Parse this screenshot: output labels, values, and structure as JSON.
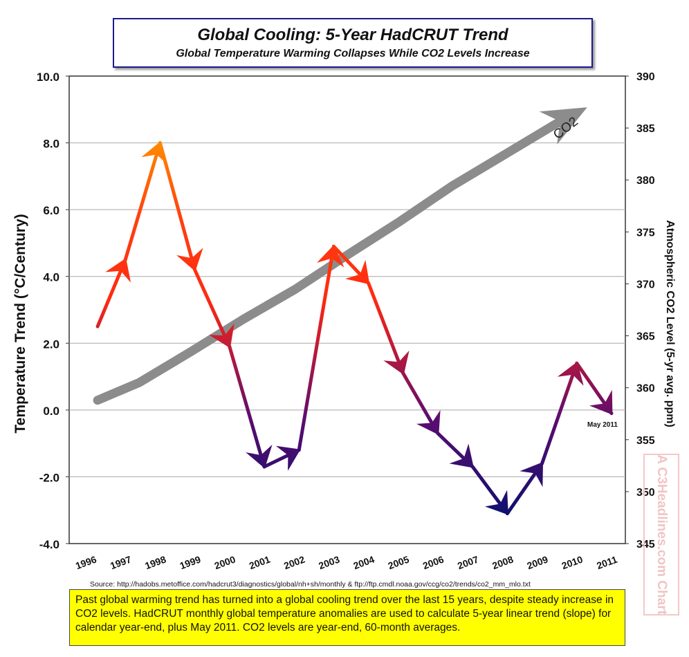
{
  "title": "Global Cooling: 5-Year HadCRUT Trend",
  "subtitle": "Global Temperature Warming Collapses While CO2 Levels Increase",
  "source": "Source: http://hadobs.metoffice.com/hadcrut3/diagnostics/global/nh+sh/monthly  &  ftp://ftp.cmdl.noaa.gov/ccg/co2/trends/co2_mm_mlo.txt",
  "note": "Past global warming trend has turned into a global cooling trend over the last 15 years, despite steady increase in CO2 levels. HadCRUT monthly global temperature anomalies are used to calculate 5-year linear trend (slope) for calendar year-end, plus May 2011. CO2 levels are year-end, 60-month averages.",
  "watermark": "A C3Headlines.com Chart",
  "colors": {
    "title_border": "#1a1a8c",
    "note_bg": "#ffff00",
    "co2_arrow": "#8c8c8c",
    "temp_warm": "#ff2a10",
    "temp_cool": "#1a0f80"
  },
  "chart_data": {
    "type": "line",
    "categories": [
      "1996",
      "1997",
      "1998",
      "1999",
      "2000",
      "2001",
      "2002",
      "2003",
      "2004",
      "2005",
      "2006",
      "2007",
      "2008",
      "2009",
      "2010",
      "2011"
    ],
    "ylabel": "Temperature Trend  (°C/Century)",
    "y2label": "Atmospheric CO2 Level (5-yr avg. ppm)",
    "ylim": [
      -4,
      10
    ],
    "yticks": [
      "10.0",
      "8.0",
      "6.0",
      "4.0",
      "2.0",
      "0.0",
      "-2.0",
      "-4.0"
    ],
    "y2lim": [
      345,
      390
    ],
    "y2ticks": [
      "390",
      "385",
      "380",
      "375",
      "370",
      "365",
      "360",
      "355",
      "350",
      "345"
    ],
    "grid": true,
    "series": [
      {
        "axis": "left",
        "x": [
          0.3,
          1.1,
          2.1,
          3.1,
          4.1,
          5.1,
          6.1,
          7.1,
          8.1,
          9.1,
          10.1,
          11.1,
          12.1,
          13.1,
          14.1,
          15.1
        ],
        "values": [
          2.5,
          4.5,
          8.0,
          4.2,
          1.9,
          -1.7,
          -1.2,
          4.9,
          3.8,
          1.1,
          -0.7,
          -1.7,
          -3.1,
          -1.6,
          1.4,
          -0.1
        ]
      },
      {
        "name": "CO2",
        "axis": "right",
        "x": [
          0.3,
          1.5,
          3,
          4.5,
          6,
          7.5,
          9,
          10.5,
          12,
          13.5,
          14.4
        ],
        "values": [
          358.8,
          360.5,
          363.5,
          366.6,
          369.5,
          372.8,
          376.0,
          379.4,
          382.4,
          385.4,
          387.0
        ]
      }
    ],
    "annotations": [
      "CO2",
      "May 2011"
    ]
  }
}
